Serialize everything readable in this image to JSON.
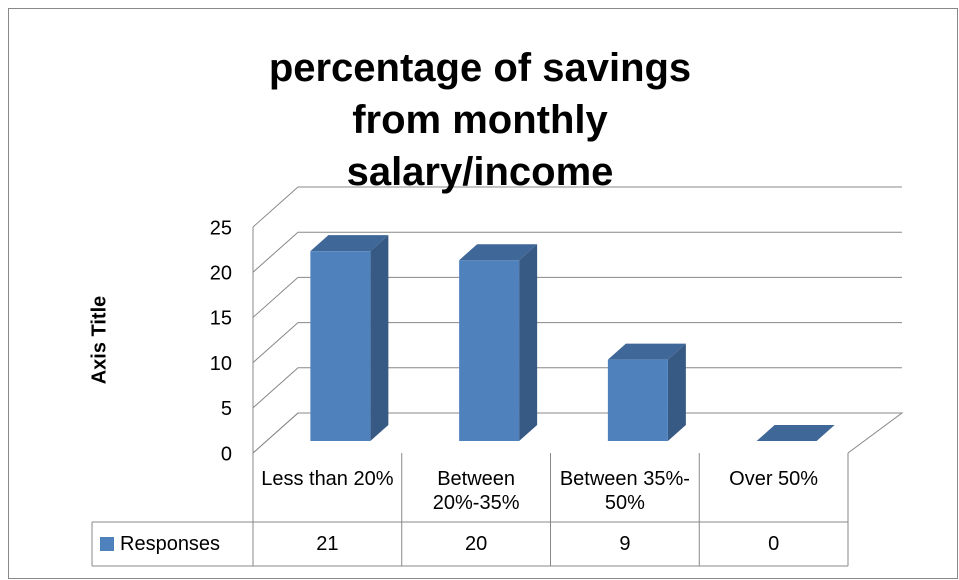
{
  "chart_data": {
    "type": "bar3d",
    "title": "percentage of savings from monthly salary/income",
    "y_axis_label": "Axis Title",
    "categories": [
      "Less than 20%",
      "Between 20%-35%",
      "Between 35%- 50%",
      "Over 50%"
    ],
    "series": [
      {
        "name": "Responses",
        "color": "#4f81bd",
        "values": [
          21,
          20,
          9,
          0
        ]
      }
    ],
    "ylim": [
      0,
      25
    ],
    "yticks": [
      0,
      5,
      10,
      15,
      20,
      25
    ],
    "grid": true,
    "data_table": true
  }
}
